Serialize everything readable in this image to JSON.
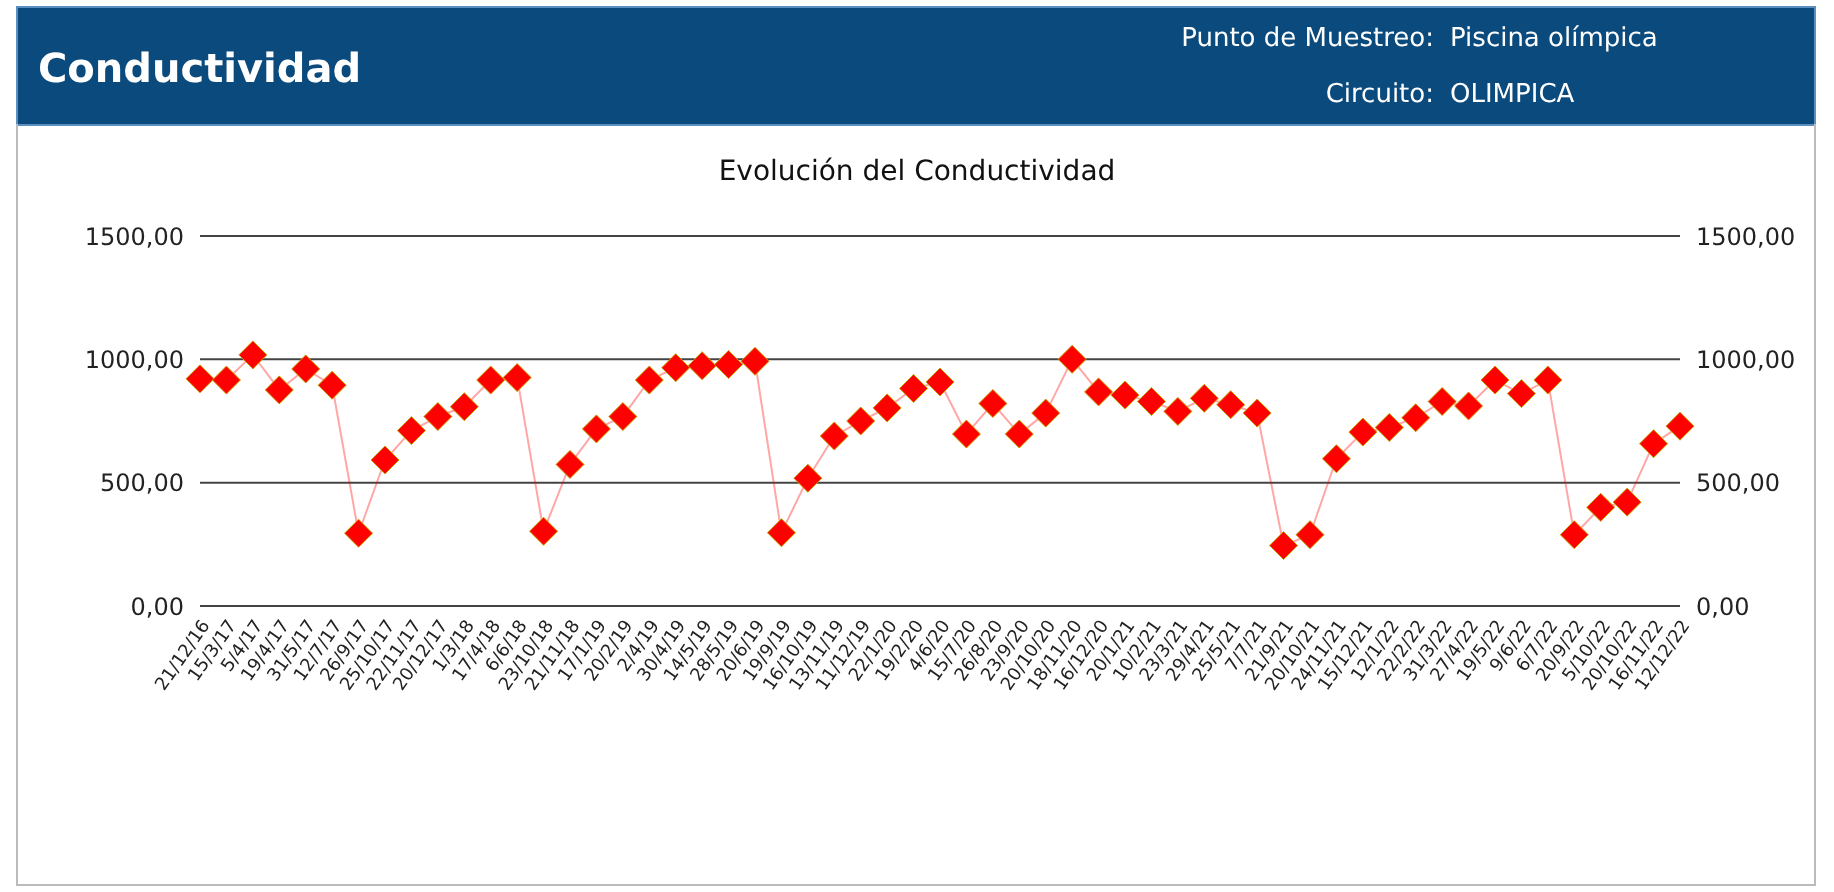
{
  "chart_data": {
    "type": "line",
    "title": "Conductividad",
    "subtitle": "Evolución del Conductividad",
    "annotations": [
      "Punto de Muestreo:",
      "Piscina olímpica",
      "Circuito:",
      "OLIMPICA"
    ],
    "categories": [
      "21/12/16",
      "15/3/17",
      "5/4/17",
      "19/4/17",
      "31/5/17",
      "12/7/17",
      "26/9/17",
      "25/10/17",
      "22/11/17",
      "20/12/17",
      "1/3/18",
      "17/4/18",
      "6/6/18",
      "23/10/18",
      "21/11/18",
      "17/1/19",
      "20/2/19",
      "2/4/19",
      "30/4/19",
      "14/5/19",
      "28/5/19",
      "20/6/19",
      "19/9/19",
      "16/10/19",
      "13/11/19",
      "11/12/19",
      "22/1/20",
      "19/2/20",
      "4/6/20",
      "15/7/20",
      "26/8/20",
      "23/9/20",
      "20/10/20",
      "18/11/20",
      "16/12/20",
      "20/1/21",
      "10/2/21",
      "23/3/21",
      "29/4/21",
      "25/5/21",
      "7/7/21",
      "21/9/21",
      "20/10/21",
      "24/11/21",
      "15/12/21",
      "12/1/22",
      "22/2/22",
      "31/3/22",
      "27/4/22",
      "19/5/22",
      "9/6/22",
      "6/7/22",
      "20/9/22",
      "5/10/22",
      "20/10/22",
      "16/11/22",
      "12/12/22"
    ],
    "series": [
      {
        "color": "#ff0000",
        "values": [
          921,
          916,
          1018,
          876,
          961,
          895,
          295,
          592,
          711,
          768,
          808,
          916,
          926,
          303,
          574,
          718,
          768,
          916,
          966,
          974,
          979,
          992,
          297,
          518,
          689,
          750,
          803,
          882,
          908,
          697,
          821,
          697,
          782,
          1000,
          868,
          855,
          829,
          789,
          842,
          816,
          782,
          245,
          289,
          597,
          705,
          724,
          763,
          829,
          811,
          916,
          861,
          916,
          289,
          400,
          421,
          658,
          729
        ]
      }
    ],
    "ylim": [
      0,
      1500
    ],
    "yticks": [
      {
        "value": 0,
        "label": "0,00"
      },
      {
        "value": 500,
        "label": "500,00"
      },
      {
        "value": 1000,
        "label": "1000,00"
      },
      {
        "value": 1500,
        "label": "1500,00"
      }
    ],
    "y2lim": [
      0,
      1500
    ],
    "y2ticks": [
      {
        "value": 0,
        "label": "0,00"
      },
      {
        "value": 500,
        "label": "500,00"
      },
      {
        "value": 1000,
        "label": "1000,00"
      },
      {
        "value": 1500,
        "label": "1500,00"
      }
    ],
    "grid": "y",
    "marker": "diamond",
    "line_style": "solid",
    "legend": false
  }
}
